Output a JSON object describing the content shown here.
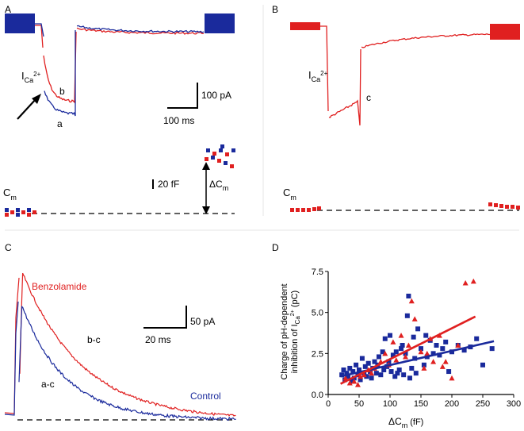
{
  "panels": {
    "A": {
      "label": "A",
      "ica_label": "I",
      "ica_sub": "Ca",
      "ica_sup": "2+",
      "trace_a_label": "a",
      "trace_b_label": "b",
      "scale_current": "100 pA",
      "scale_time": "100 ms",
      "scale_cap": "20 fF",
      "cm_label": "C",
      "cm_sub": "m",
      "dcm_label": "ΔC",
      "dcm_sub": "m",
      "colors": {
        "control": "#1a2a9c",
        "benzolamide": "#e02020"
      }
    },
    "B": {
      "label": "B",
      "ica_label": "I",
      "ica_sub": "Ca",
      "ica_sup": "2+",
      "trace_c_label": "c",
      "cm_label": "C",
      "cm_sub": "m"
    },
    "C": {
      "label": "C",
      "benzolamide_label": "Benzolamide",
      "control_label": "Control",
      "bc_label": "b-c",
      "ac_label": "a-c",
      "scale_current": "50 pA",
      "scale_time": "20 ms"
    },
    "D": {
      "label": "D"
    }
  },
  "chart_data": {
    "type": "scatter",
    "ylabel_line1": "Charge of pH-dependent",
    "ylabel_line2": "inhibition of I",
    "ylabel_sub": "Ca",
    "ylabel_sup": "2+",
    "ylabel_unit": " (pC)",
    "xlabel": "ΔC",
    "xlabel_sub": "m",
    "xlabel_unit": " (fF)",
    "xlim": [
      0,
      300
    ],
    "ylim": [
      0,
      7.5
    ],
    "xticks": [
      "0",
      "50",
      "100",
      "150",
      "200",
      "250",
      "300"
    ],
    "yticks": [
      "0.0",
      "2.5",
      "5.0",
      "7.5"
    ],
    "series": [
      {
        "marker": "square",
        "color": "#1a2a9c",
        "points": [
          [
            22,
            1.2
          ],
          [
            25,
            1.5
          ],
          [
            27,
            0.9
          ],
          [
            30,
            1.3
          ],
          [
            32,
            1.1
          ],
          [
            35,
            1.6
          ],
          [
            38,
            0.8
          ],
          [
            40,
            1.4
          ],
          [
            42,
            1.0
          ],
          [
            45,
            1.8
          ],
          [
            48,
            1.2
          ],
          [
            50,
            1.5
          ],
          [
            52,
            0.9
          ],
          [
            55,
            2.2
          ],
          [
            58,
            1.3
          ],
          [
            60,
            1.7
          ],
          [
            62,
            1.1
          ],
          [
            65,
            1.9
          ],
          [
            68,
            1.4
          ],
          [
            70,
            1.0
          ],
          [
            72,
            1.6
          ],
          [
            75,
            2.0
          ],
          [
            78,
            1.3
          ],
          [
            80,
            1.8
          ],
          [
            82,
            2.3
          ],
          [
            85,
            1.2
          ],
          [
            88,
            2.6
          ],
          [
            90,
            1.5
          ],
          [
            92,
            3.4
          ],
          [
            95,
            1.7
          ],
          [
            98,
            2.0
          ],
          [
            100,
            3.6
          ],
          [
            102,
            1.4
          ],
          [
            105,
            2.4
          ],
          [
            108,
            1.1
          ],
          [
            110,
            2.6
          ],
          [
            112,
            1.3
          ],
          [
            115,
            1.5
          ],
          [
            118,
            2.8
          ],
          [
            120,
            3.0
          ],
          [
            122,
            1.2
          ],
          [
            125,
            2.5
          ],
          [
            128,
            4.8
          ],
          [
            130,
            6.0
          ],
          [
            132,
            1.0
          ],
          [
            135,
            1.6
          ],
          [
            138,
            3.5
          ],
          [
            140,
            2.2
          ],
          [
            142,
            1.3
          ],
          [
            145,
            4.0
          ],
          [
            150,
            2.8
          ],
          [
            155,
            1.8
          ],
          [
            158,
            3.6
          ],
          [
            160,
            2.3
          ],
          [
            165,
            3.3
          ],
          [
            170,
            2.5
          ],
          [
            175,
            3.0
          ],
          [
            180,
            2.4
          ],
          [
            185,
            2.8
          ],
          [
            190,
            3.2
          ],
          [
            195,
            1.4
          ],
          [
            200,
            2.6
          ],
          [
            210,
            3.0
          ],
          [
            220,
            2.7
          ],
          [
            230,
            2.9
          ],
          [
            240,
            3.4
          ],
          [
            250,
            1.8
          ],
          [
            265,
            2.8
          ]
        ]
      },
      {
        "marker": "triangle",
        "color": "#e02020",
        "points": [
          [
            28,
            1.0
          ],
          [
            35,
            0.7
          ],
          [
            42,
            0.8
          ],
          [
            48,
            0.6
          ],
          [
            52,
            1.1
          ],
          [
            58,
            1.2
          ],
          [
            65,
            1.5
          ],
          [
            70,
            1.3
          ],
          [
            75,
            1.6
          ],
          [
            85,
            2.0
          ],
          [
            92,
            2.5
          ],
          [
            98,
            1.8
          ],
          [
            105,
            3.2
          ],
          [
            110,
            2.1
          ],
          [
            118,
            3.6
          ],
          [
            125,
            2.3
          ],
          [
            130,
            3.0
          ],
          [
            135,
            5.7
          ],
          [
            140,
            4.6
          ],
          [
            150,
            2.6
          ],
          [
            155,
            1.6
          ],
          [
            160,
            2.5
          ],
          [
            165,
            3.4
          ],
          [
            170,
            2.0
          ],
          [
            180,
            3.6
          ],
          [
            185,
            1.7
          ],
          [
            190,
            2.0
          ],
          [
            200,
            1.0
          ],
          [
            210,
            3.0
          ],
          [
            222,
            6.8
          ],
          [
            235,
            6.9
          ]
        ]
      }
    ],
    "fit_lines": [
      {
        "color": "#1a2a9c",
        "x": [
          20,
          268
        ],
        "y": [
          1.1,
          3.25
        ]
      },
      {
        "color": "#e02020",
        "x": [
          20,
          238
        ],
        "y": [
          0.65,
          4.75
        ]
      }
    ]
  }
}
